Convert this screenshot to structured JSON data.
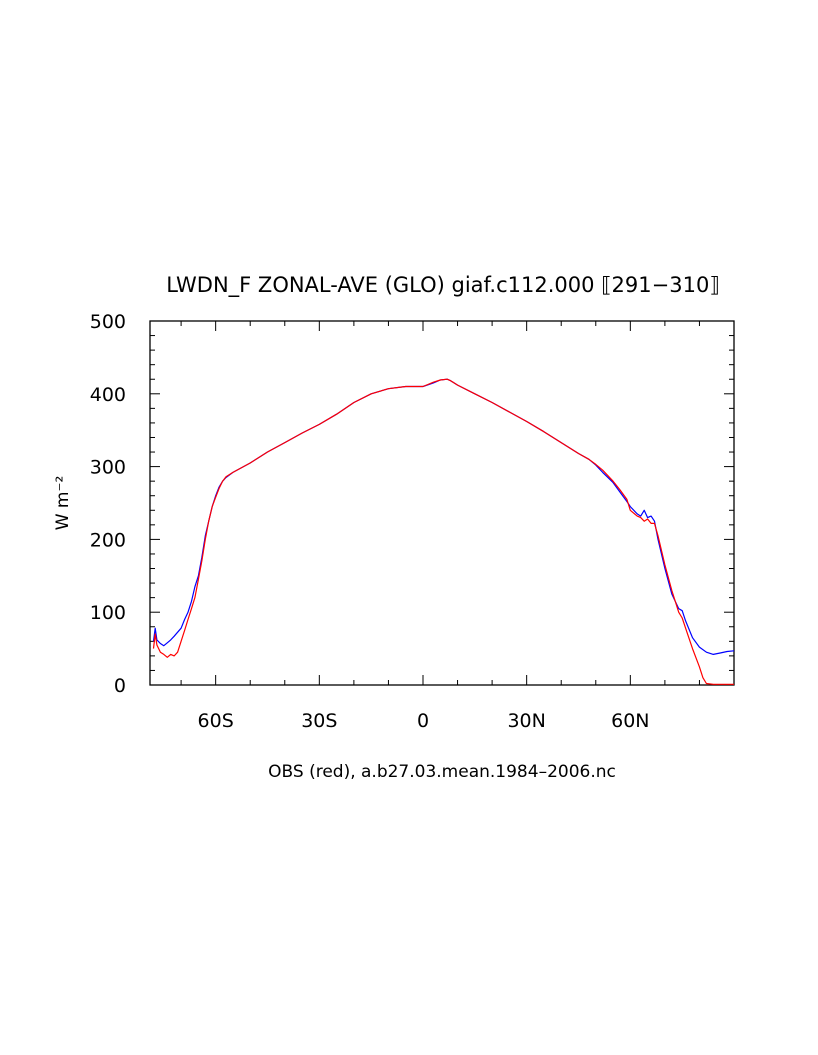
{
  "chart_data": {
    "type": "line",
    "title": "LWDN_F ZONAL-AVE (GLO) giaf.c112.000 ⟦291−310⟧",
    "xlabel": "OBS (red), a.b27.03.mean.1984–2006.nc",
    "ylabel": "W m⁻²",
    "xlim": [
      -79,
      90
    ],
    "ylim": [
      0,
      500
    ],
    "grid": false,
    "xticks": [
      {
        "value": -60,
        "label": "60S"
      },
      {
        "value": -30,
        "label": "30S"
      },
      {
        "value": 0,
        "label": "0"
      },
      {
        "value": 30,
        "label": "30N"
      },
      {
        "value": 60,
        "label": "60N"
      }
    ],
    "yticks": [
      {
        "value": 0,
        "label": "0"
      },
      {
        "value": 100,
        "label": "100"
      },
      {
        "value": 200,
        "label": "200"
      },
      {
        "value": 300,
        "label": "300"
      },
      {
        "value": 400,
        "label": "400"
      },
      {
        "value": 500,
        "label": "500"
      }
    ],
    "series": [
      {
        "color": "#0000ff",
        "x": [
          -78,
          -77.5,
          -77,
          -76,
          -75,
          -74,
          -73,
          -72,
          -70,
          -69,
          -68,
          -67,
          -66,
          -65,
          -64,
          -63,
          -62,
          -61,
          -60,
          -59,
          -58,
          -57,
          -55,
          -50,
          -45,
          -40,
          -35,
          -30,
          -25,
          -20,
          -15,
          -10,
          -5,
          0,
          3,
          5,
          7,
          8,
          10,
          15,
          20,
          25,
          30,
          35,
          40,
          45,
          48,
          50,
          52,
          55,
          57,
          59,
          60,
          62,
          63,
          64,
          65,
          66,
          67,
          68,
          70,
          72,
          74,
          75,
          76,
          78,
          80,
          82,
          84,
          86,
          88,
          90
        ],
        "y": [
          60,
          78,
          62,
          57,
          54,
          58,
          62,
          67,
          78,
          90,
          100,
          115,
          135,
          150,
          175,
          205,
          225,
          245,
          260,
          272,
          280,
          285,
          292,
          305,
          320,
          333,
          346,
          358,
          372,
          388,
          400,
          407,
          410,
          410,
          415,
          419,
          420,
          418,
          412,
          400,
          388,
          375,
          362,
          348,
          333,
          318,
          310,
          302,
          292,
          278,
          265,
          252,
          245,
          235,
          232,
          240,
          230,
          232,
          225,
          200,
          160,
          125,
          105,
          102,
          88,
          65,
          52,
          45,
          42,
          44,
          46,
          47
        ]
      },
      {
        "color": "#ff0000",
        "x": [
          -78,
          -77.5,
          -77,
          -76,
          -75,
          -74,
          -73,
          -72,
          -71,
          -70,
          -69,
          -68,
          -67,
          -66,
          -65,
          -64,
          -63,
          -62,
          -61,
          -60,
          -59,
          -58,
          -57,
          -55,
          -50,
          -45,
          -40,
          -35,
          -30,
          -25,
          -20,
          -15,
          -10,
          -5,
          0,
          3,
          5,
          7,
          8,
          10,
          15,
          20,
          25,
          30,
          35,
          40,
          45,
          48,
          50,
          52,
          55,
          57,
          59,
          60,
          62,
          63,
          64,
          65,
          66,
          67,
          68,
          70,
          72,
          74,
          75,
          76,
          78,
          80,
          81,
          82,
          84,
          86,
          88,
          90
        ],
        "y": [
          50,
          70,
          55,
          45,
          42,
          38,
          42,
          40,
          45,
          60,
          75,
          90,
          105,
          120,
          145,
          170,
          200,
          225,
          245,
          258,
          270,
          280,
          286,
          292,
          305,
          320,
          333,
          346,
          358,
          372,
          388,
          400,
          407,
          410,
          410,
          416,
          419,
          420,
          418,
          412,
          400,
          388,
          375,
          362,
          348,
          333,
          318,
          310,
          303,
          295,
          280,
          268,
          255,
          240,
          232,
          230,
          225,
          228,
          222,
          222,
          205,
          165,
          130,
          100,
          92,
          78,
          50,
          25,
          10,
          2,
          1,
          1,
          1,
          1
        ]
      }
    ]
  }
}
